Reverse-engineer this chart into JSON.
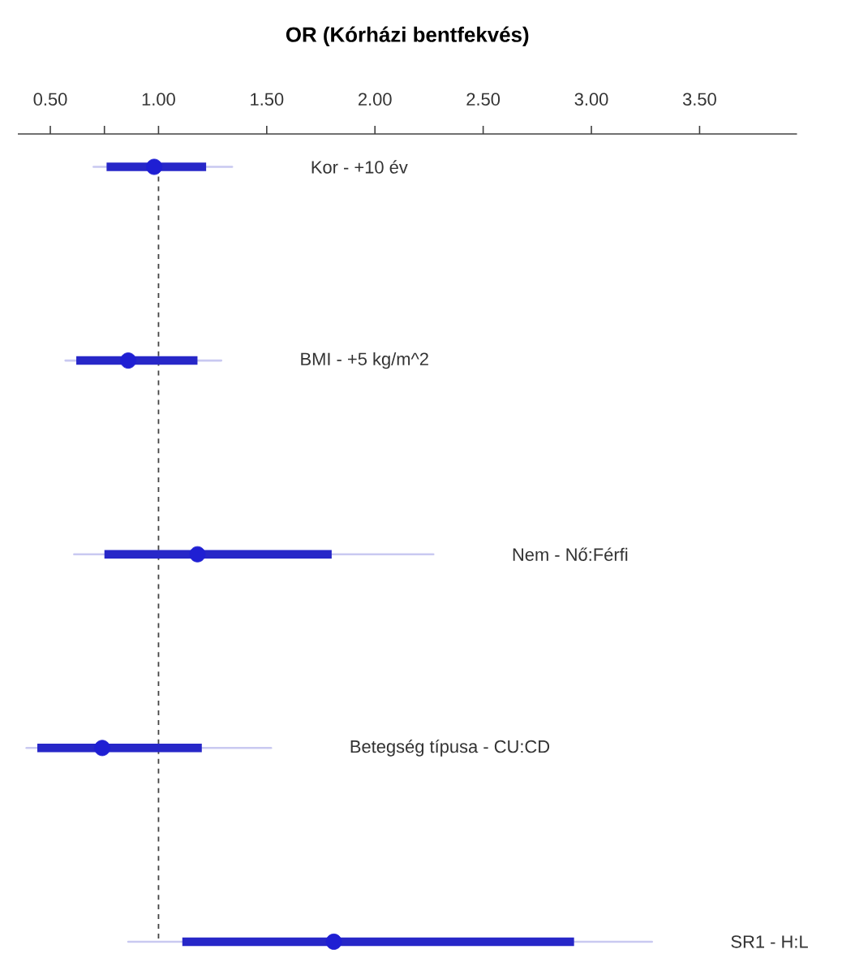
{
  "chart_data": {
    "type": "box",
    "orientation": "horizontal",
    "xlabel": "OR (Kórházi bentfekvés)",
    "categories": [
      "Kor - +10 év",
      "BMI - +5 kg/m^2",
      "Nem - Nő:Férfi",
      "Betegség típusa - CU:CD",
      "SR1 - H:L"
    ],
    "boxes": [
      {
        "low": 0.7,
        "q1": 0.76,
        "median": 0.98,
        "q3": 1.22,
        "high": 1.34
      },
      {
        "low": 0.57,
        "q1": 0.62,
        "median": 0.86,
        "q3": 1.18,
        "high": 1.29
      },
      {
        "low": 0.61,
        "q1": 0.75,
        "median": 1.18,
        "q3": 1.8,
        "high": 2.27
      },
      {
        "low": 0.39,
        "q1": 0.44,
        "median": 0.74,
        "q3": 1.2,
        "high": 1.52
      },
      {
        "low": 0.86,
        "q1": 1.11,
        "median": 1.81,
        "q3": 2.92,
        "high": 3.28
      }
    ],
    "color": "#2727c8",
    "xlim": [
      0.35,
      3.95
    ],
    "xticks": [
      {
        "value": 0.5,
        "label": "0.50"
      },
      {
        "value": 0.75,
        "label": null
      },
      {
        "value": 1.0,
        "label": "1.00"
      },
      {
        "value": 1.5,
        "label": "1.50"
      },
      {
        "value": 2.0,
        "label": "2.00"
      },
      {
        "value": 2.5,
        "label": "2.50"
      },
      {
        "value": 3.0,
        "label": "3.00"
      },
      {
        "value": 3.5,
        "label": "3.50"
      }
    ],
    "ref_lines": [
      {
        "axis": "x",
        "value": 1.0,
        "color": "#444444",
        "line_style": "dashed"
      }
    ]
  }
}
